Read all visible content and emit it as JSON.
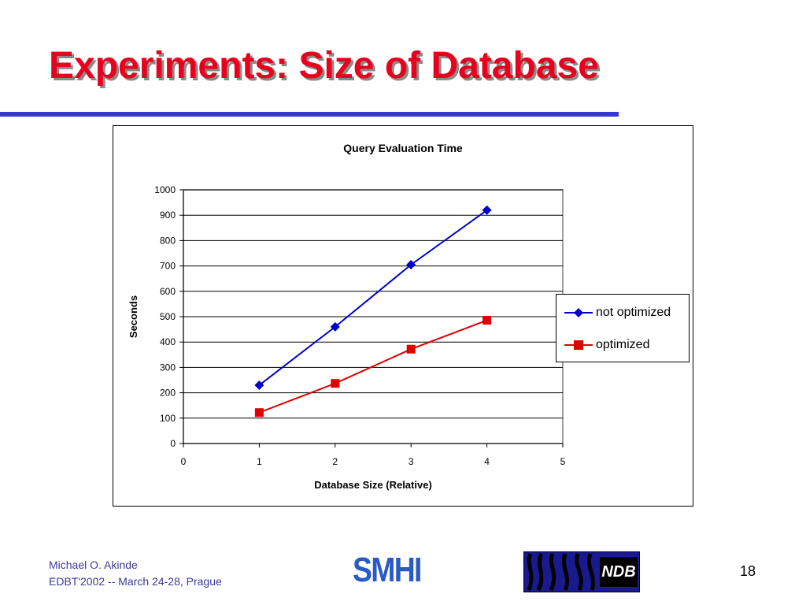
{
  "slide": {
    "title": "Experiments: Size of Database",
    "page_number": "18",
    "colors": {
      "title": "#e8001c",
      "rule": "#3535d6"
    }
  },
  "footer": {
    "author": "Michael O. Akinde",
    "event": "EDBT'2002 -- March 24-28, Prague",
    "logo_left": "SMHI",
    "logo_right": "NDB"
  },
  "chart_data": {
    "type": "line",
    "title": "Query Evaluation Time",
    "xlabel": "Database Size (Relative)",
    "ylabel": "Seconds",
    "xlim": [
      0,
      5
    ],
    "ylim": [
      0,
      1000
    ],
    "xticks": [
      0,
      1,
      2,
      3,
      4,
      5
    ],
    "yticks": [
      0,
      100,
      200,
      300,
      400,
      500,
      600,
      700,
      800,
      900,
      1000
    ],
    "grid": "horizontal",
    "legend_position": "right",
    "series": [
      {
        "name": "not optimized",
        "color": "#0000cc",
        "marker": "diamond",
        "x": [
          1,
          2,
          3,
          4
        ],
        "y": [
          230,
          460,
          705,
          920
        ]
      },
      {
        "name": "optimized",
        "color": "#e00000",
        "marker": "square",
        "x": [
          1,
          2,
          3,
          4
        ],
        "y": [
          122,
          237,
          372,
          486
        ]
      }
    ]
  }
}
